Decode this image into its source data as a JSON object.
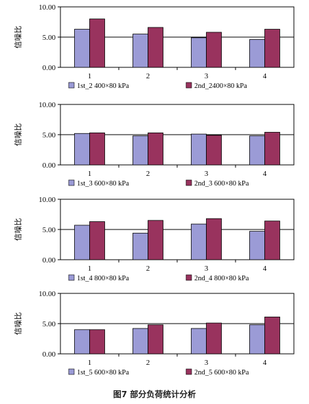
{
  "caption": "图7   部分负荷统计分析",
  "colors": {
    "series1": "#9b9bd6",
    "series2": "#99335e",
    "grid": "#000000"
  },
  "chart_data": [
    {
      "type": "bar",
      "categories": [
        "1",
        "2",
        "3",
        "4"
      ],
      "ylabel": "信噪比",
      "ylim": [
        0,
        10
      ],
      "yticks": [
        "0.00",
        "5.00",
        "10.00"
      ],
      "grid": true,
      "legend": "bottom",
      "series": [
        {
          "name": "1st_2 400×80 kPa",
          "values": [
            6.3,
            5.5,
            4.9,
            4.6
          ]
        },
        {
          "name": "2nd_2400×80 kPa",
          "values": [
            8.0,
            6.6,
            5.8,
            6.3
          ]
        }
      ]
    },
    {
      "type": "bar",
      "categories": [
        "1",
        "2",
        "3",
        "4"
      ],
      "ylabel": "信噪比",
      "ylim": [
        0,
        10
      ],
      "yticks": [
        "0.00",
        "5.00",
        "10.00"
      ],
      "grid": true,
      "legend": "bottom",
      "series": [
        {
          "name": "1st_3 600×80 kPa",
          "values": [
            5.2,
            4.8,
            5.1,
            4.8
          ]
        },
        {
          "name": "2nd_3 600×80 kPa",
          "values": [
            5.3,
            5.3,
            4.9,
            5.4
          ]
        }
      ]
    },
    {
      "type": "bar",
      "categories": [
        "1",
        "2",
        "3",
        "4"
      ],
      "ylabel": "信噪比",
      "ylim": [
        0,
        10
      ],
      "yticks": [
        "0.00",
        "5.00",
        "10.00"
      ],
      "grid": true,
      "legend": "bottom",
      "series": [
        {
          "name": "1st_4 800×80 kPa",
          "values": [
            5.7,
            4.4,
            5.9,
            4.7
          ]
        },
        {
          "name": "2nd_4 800×80 kPa",
          "values": [
            6.3,
            6.5,
            6.8,
            6.4
          ]
        }
      ]
    },
    {
      "type": "bar",
      "categories": [
        "1",
        "2",
        "3",
        "4"
      ],
      "ylabel": "信噪比",
      "ylim": [
        0,
        10
      ],
      "yticks": [
        "0.00",
        "5.00",
        "10.00"
      ],
      "grid": true,
      "legend": "bottom",
      "series": [
        {
          "name": "1st_5 600×80 kPa",
          "values": [
            4.0,
            4.2,
            4.2,
            4.8
          ]
        },
        {
          "name": "2nd_5 600×80 kPa",
          "values": [
            4.0,
            4.8,
            5.1,
            6.1
          ]
        }
      ]
    }
  ]
}
